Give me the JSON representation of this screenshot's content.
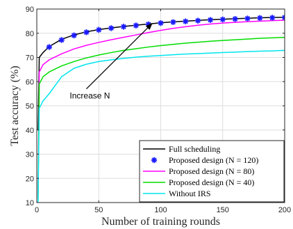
{
  "chart_data": {
    "type": "line",
    "title": "",
    "xlabel": "Number of training rounds",
    "ylabel": "Test accuracy (%)",
    "xlim": [
      0,
      200
    ],
    "ylim": [
      10,
      90
    ],
    "xticks": [
      0,
      50,
      100,
      150,
      200
    ],
    "yticks": [
      10,
      20,
      30,
      40,
      50,
      60,
      70,
      80,
      90
    ],
    "grid": true,
    "legend_position": "bottom-right",
    "annotation": {
      "text": "Increase N",
      "from": [
        40,
        57
      ],
      "to": [
        93,
        84
      ]
    },
    "series": [
      {
        "name": "Full scheduling",
        "color": "#000000",
        "style": "line",
        "x": [
          1,
          2,
          5,
          10,
          20,
          30,
          40,
          50,
          60,
          70,
          80,
          90,
          100,
          110,
          120,
          130,
          140,
          150,
          160,
          170,
          180,
          190,
          200
        ],
        "y": [
          40,
          70,
          72,
          74.5,
          77.5,
          79.3,
          80.6,
          81.5,
          82.2,
          82.8,
          83.3,
          83.8,
          84.3,
          84.7,
          85,
          85.3,
          85.6,
          85.8,
          86,
          86.2,
          86.4,
          86.5,
          86.6
        ]
      },
      {
        "name": "Proposed design (N = 120)",
        "color": "#1a1aff",
        "style": "markers",
        "x": [
          10,
          20,
          30,
          40,
          50,
          60,
          70,
          80,
          90,
          100,
          110,
          120,
          130,
          140,
          150,
          160,
          170,
          180,
          190,
          200
        ],
        "y": [
          74.3,
          77.2,
          79.1,
          80.4,
          81.4,
          82.1,
          82.7,
          83.2,
          83.7,
          84.2,
          84.6,
          84.9,
          85.2,
          85.5,
          85.7,
          85.9,
          86.1,
          86.3,
          86.4,
          86.5
        ]
      },
      {
        "name": "Proposed design (N = 80)",
        "color": "#ff00ff",
        "style": "line",
        "x": [
          1,
          2,
          5,
          10,
          20,
          30,
          40,
          50,
          60,
          70,
          80,
          90,
          100,
          110,
          120,
          130,
          140,
          150,
          160,
          170,
          180,
          190,
          200
        ],
        "y": [
          12,
          64,
          67,
          69,
          71.5,
          73.5,
          75,
          76.2,
          77.3,
          78.3,
          79.3,
          80.3,
          81.2,
          82,
          82.7,
          83.3,
          83.8,
          84.2,
          84.5,
          84.8,
          85,
          85.2,
          85.4
        ]
      },
      {
        "name": "Proposed design (N = 40)",
        "color": "#00dd00",
        "style": "line",
        "x": [
          1,
          2,
          5,
          10,
          20,
          30,
          40,
          50,
          60,
          70,
          80,
          90,
          100,
          110,
          120,
          130,
          140,
          150,
          160,
          170,
          180,
          190,
          200
        ],
        "y": [
          11,
          59,
          62,
          64,
          66.5,
          68.3,
          69.8,
          71,
          72,
          72.9,
          73.6,
          74.3,
          74.9,
          75.4,
          75.9,
          76.3,
          76.7,
          77,
          77.3,
          77.6,
          77.9,
          78.1,
          78.3
        ]
      },
      {
        "name": "Without IRS",
        "color": "#00e5ee",
        "style": "line",
        "x": [
          1,
          2,
          5,
          10,
          15,
          20,
          30,
          40,
          50,
          60,
          70,
          80,
          90,
          100,
          110,
          120,
          130,
          140,
          150,
          160,
          170,
          180,
          190,
          200
        ],
        "y": [
          10,
          49,
          52,
          55,
          58.5,
          62,
          65.5,
          67.2,
          68.3,
          69,
          69.6,
          70.1,
          70.5,
          70.8,
          71.1,
          71.4,
          71.6,
          71.8,
          72,
          72.2,
          72.4,
          72.6,
          72.7,
          72.9
        ]
      }
    ]
  }
}
